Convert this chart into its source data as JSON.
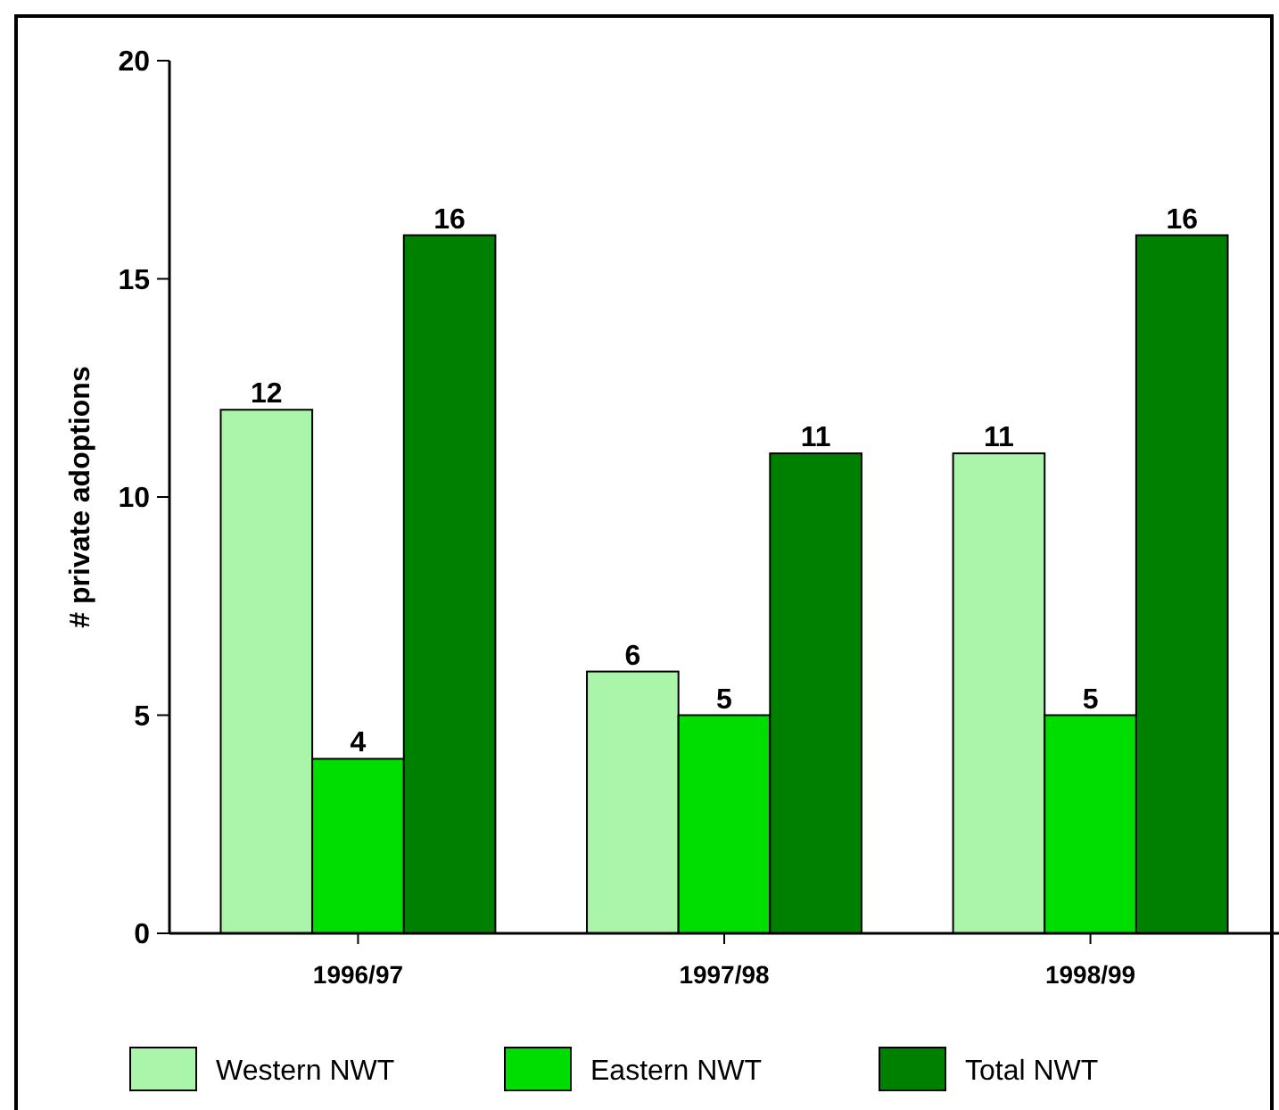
{
  "chart_data": {
    "type": "bar",
    "ylabel": "# private adoptions",
    "categories": [
      "1996/97",
      "1997/98",
      "1998/99"
    ],
    "series": [
      {
        "name": "Western NWT",
        "color": "#aaf5aa",
        "values": [
          12,
          6,
          11
        ]
      },
      {
        "name": "Eastern NWT",
        "color": "#00dd00",
        "values": [
          4,
          5,
          5
        ]
      },
      {
        "name": "Total NWT",
        "color": "#008000",
        "values": [
          16,
          11,
          16
        ]
      }
    ],
    "ylim": [
      0,
      20
    ],
    "yticks": [
      0,
      5,
      10,
      15,
      20
    ],
    "data_labels": true,
    "legend": "bottom",
    "grid": false
  }
}
